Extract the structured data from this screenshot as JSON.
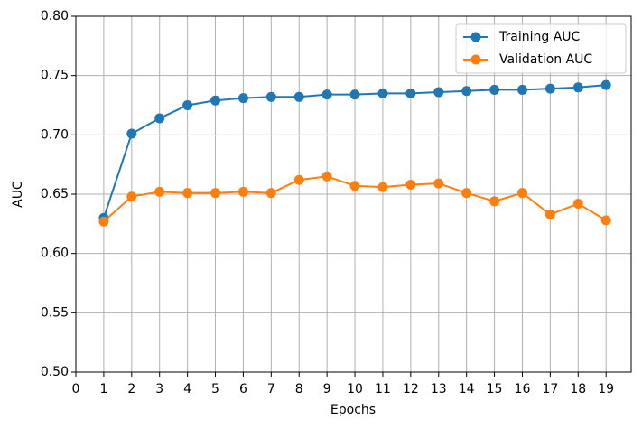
{
  "chart_data": {
    "type": "line",
    "x_label": "Epochs",
    "y_label": "AUC",
    "x": [
      1,
      2,
      3,
      4,
      5,
      6,
      7,
      8,
      9,
      10,
      11,
      12,
      13,
      14,
      15,
      16,
      17,
      18,
      19
    ],
    "series": [
      {
        "name": "Training AUC",
        "color": "#1f77b4",
        "values": [
          0.63,
          0.701,
          0.714,
          0.725,
          0.729,
          0.731,
          0.732,
          0.732,
          0.734,
          0.734,
          0.735,
          0.735,
          0.736,
          0.737,
          0.738,
          0.738,
          0.739,
          0.74,
          0.742
        ]
      },
      {
        "name": "Validation AUC",
        "color": "#ff7f0e",
        "values": [
          0.627,
          0.648,
          0.652,
          0.651,
          0.651,
          0.652,
          0.651,
          0.662,
          0.665,
          0.657,
          0.656,
          0.658,
          0.659,
          0.651,
          0.644,
          0.651,
          0.633,
          0.642,
          0.628
        ]
      }
    ],
    "xlim": [
      0,
      19.9
    ],
    "xticks": [
      0,
      1,
      2,
      3,
      4,
      5,
      6,
      7,
      8,
      9,
      10,
      11,
      12,
      13,
      14,
      15,
      16,
      17,
      18,
      19
    ],
    "ylim": [
      0.5,
      0.8
    ],
    "yticks": [
      {
        "value": 0.5,
        "label": "0.50"
      },
      {
        "value": 0.55,
        "label": "0.55"
      },
      {
        "value": 0.6,
        "label": "0.60"
      },
      {
        "value": 0.65,
        "label": "0.65"
      },
      {
        "value": 0.7,
        "label": "0.70"
      },
      {
        "value": 0.75,
        "label": "0.75"
      },
      {
        "value": 0.8,
        "label": "0.80"
      }
    ],
    "grid": true,
    "legend": "upper right"
  }
}
